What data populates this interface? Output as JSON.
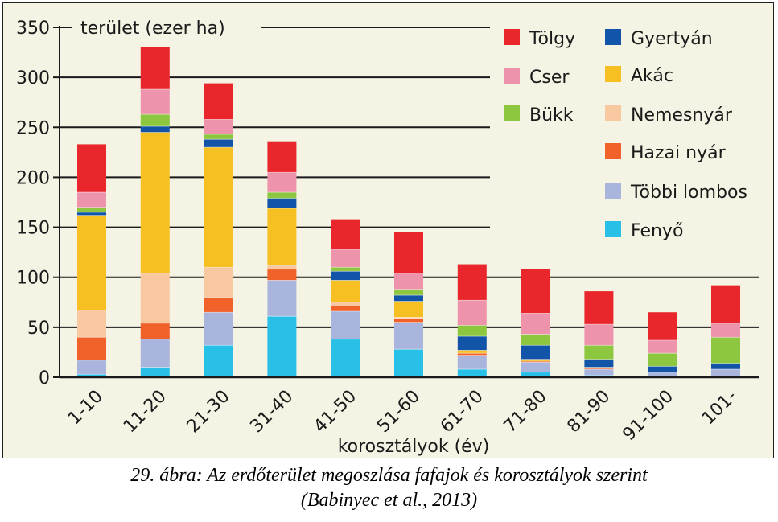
{
  "chart_data": {
    "type": "bar",
    "stacked": true,
    "ylabel": "terület (ezer ha)",
    "xlabel": "korosztályok (év)",
    "ylim": [
      0,
      350
    ],
    "yticks": [
      0,
      50,
      100,
      150,
      200,
      250,
      300,
      350
    ],
    "grid": "horizontal",
    "legend_position": "top-right",
    "categories": [
      "1-10",
      "11-20",
      "21-30",
      "31-40",
      "41-50",
      "51-60",
      "61-70",
      "71-80",
      "81-90",
      "91-100",
      "101-"
    ],
    "series": [
      {
        "name": "Fenyő",
        "color": "#29c0e8",
        "values": [
          3,
          10,
          32,
          61,
          38,
          28,
          8,
          5,
          2,
          1,
          1
        ]
      },
      {
        "name": "Többi lombos",
        "color": "#a9b5dc",
        "values": [
          14,
          28,
          33,
          36,
          28,
          27,
          14,
          10,
          6,
          4,
          7
        ]
      },
      {
        "name": "Hazai nyár",
        "color": "#f0622a",
        "values": [
          23,
          16,
          15,
          11,
          6,
          4,
          2,
          1,
          1,
          0,
          0
        ]
      },
      {
        "name": "Nemesnyár",
        "color": "#f8c9a0",
        "values": [
          27,
          50,
          30,
          4,
          3,
          1,
          0,
          0,
          0,
          0,
          0
        ]
      },
      {
        "name": "Akác",
        "color": "#f6c022",
        "values": [
          95,
          141,
          120,
          57,
          22,
          16,
          3,
          2,
          1,
          0,
          0
        ]
      },
      {
        "name": "Gyertyán",
        "color": "#1255a8",
        "values": [
          3,
          6,
          8,
          10,
          9,
          6,
          14,
          14,
          8,
          6,
          6
        ]
      },
      {
        "name": "Bükk",
        "color": "#8dc63f",
        "values": [
          5,
          12,
          5,
          6,
          4,
          6,
          11,
          11,
          14,
          13,
          26
        ]
      },
      {
        "name": "Cser",
        "color": "#ee93ac",
        "values": [
          15,
          25,
          15,
          20,
          18,
          16,
          25,
          21,
          21,
          13,
          14
        ]
      },
      {
        "name": "Tölgy",
        "color": "#e8262b",
        "values": [
          48,
          45,
          36,
          31,
          30,
          41,
          36,
          44,
          33,
          28,
          38
        ]
      }
    ]
  },
  "legend_order": [
    "Tölgy",
    "Cser",
    "Bükk",
    "Gyertyán",
    "Akác",
    "Nemesnyár",
    "Hazai nyár",
    "Többi lombos",
    "Fenyő"
  ],
  "caption": {
    "line1": "29. ábra: Az erdőterület megoszlása fafajok és korosztályok szerint",
    "line2": "(Babinyec et al., 2013)"
  }
}
